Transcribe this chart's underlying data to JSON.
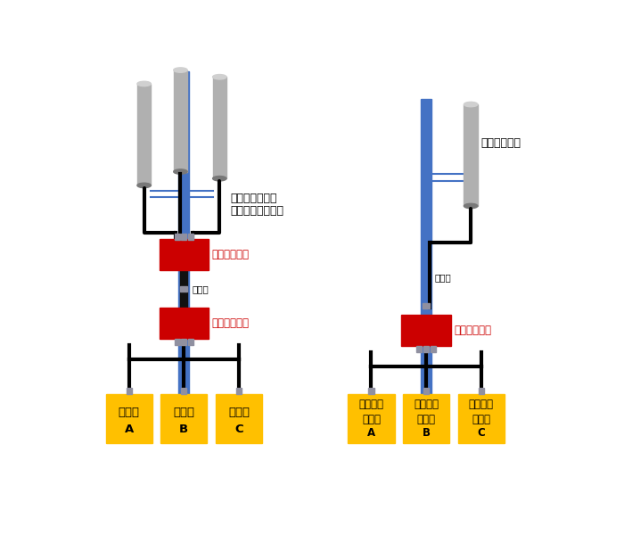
{
  "bg_color": "#ffffff",
  "pole_color_blue": "#4472C4",
  "pole_color_gray": "#B0B0B0",
  "pole_color_gray_dark": "#787878",
  "pole_color_gray_light": "#D0D0D0",
  "red_box_color": "#CC0000",
  "yellow_box_color": "#FFC000",
  "connector_color": "#9090A0",
  "cable_color": "#000000",
  "blue_line_color": "#4472C4",
  "text_red": "#CC0000",
  "text_black": "#000000",
  "left_label1": "携帯電話事業者",
  "left_label2": "セクターアンテナ",
  "right_label1": "共用アンテナ",
  "combiner_label": "周波数共用器",
  "feeder_label": "給電線",
  "left_boxes": [
    "周波数\nA",
    "周波数\nB",
    "周波数\nC"
  ],
  "right_boxes": [
    "携帯電話\n事業者\nA",
    "携帯電話\n事業者\nB",
    "携帯電話\n事業者\nC"
  ]
}
